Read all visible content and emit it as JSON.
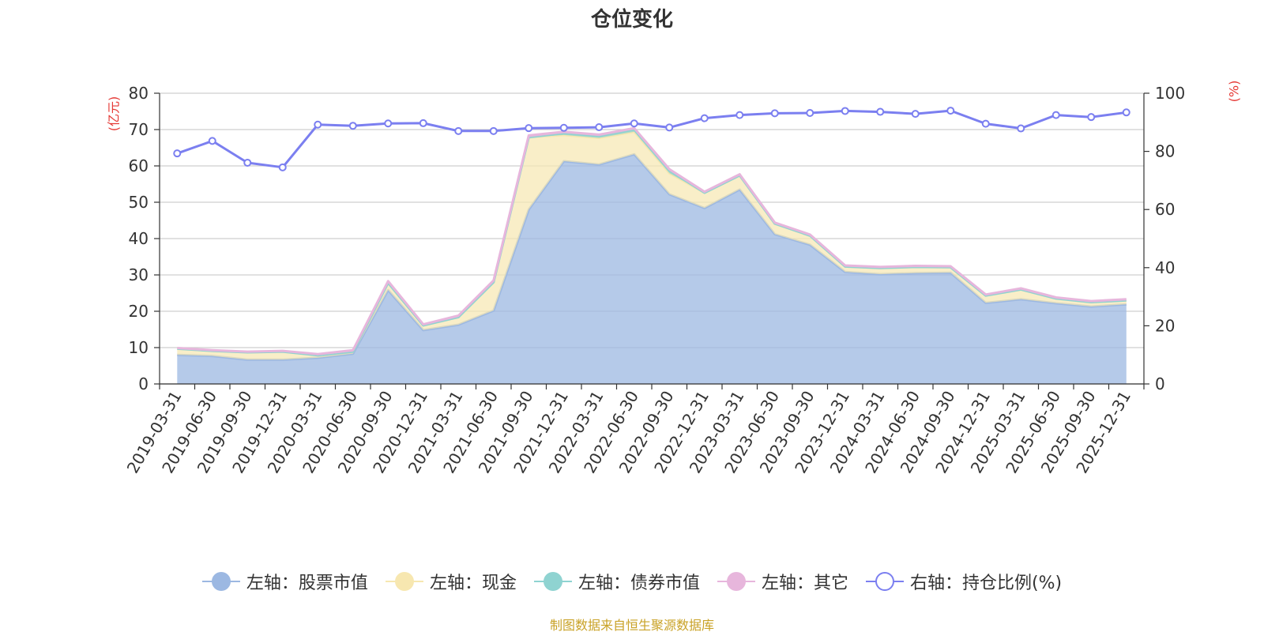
{
  "colors": {
    "stock": "#9cb8e2",
    "cash": "#f7e7b0",
    "bond": "#8fd3d1",
    "other": "#e7b6dc",
    "ratio": "#7b7ff0",
    "unit": "#e53935",
    "source": "#c9a227"
  },
  "chart_data": {
    "type": "area",
    "title": "仓位变化",
    "left_axis_unit": "(亿元)",
    "right_axis_unit": "(%)",
    "left_ylim": [
      0,
      80
    ],
    "right_ylim": [
      0,
      100
    ],
    "left_ticks": [
      "0",
      "10",
      "20",
      "30",
      "40",
      "50",
      "60",
      "70",
      "80"
    ],
    "right_ticks": [
      "0",
      "20",
      "40",
      "60",
      "80",
      "100"
    ],
    "grid": true,
    "legend_position": "bottom",
    "categories": [
      "2019-03-31",
      "2019-06-30",
      "2019-09-30",
      "2019-12-31",
      "2020-03-31",
      "2020-06-30",
      "2020-09-30",
      "2020-12-31",
      "2021-03-31",
      "2021-06-30",
      "2021-09-30",
      "2021-12-31",
      "2022-03-31",
      "2022-06-30",
      "2022-09-30",
      "2022-12-31",
      "2023-03-31",
      "2023-06-30",
      "2023-09-30",
      "2023-12-31",
      "2024-03-31",
      "2024-06-30",
      "2024-09-30",
      "2024-12-31",
      "2025-03-31",
      "2025-06-30",
      "2025-09-30",
      "2025-12-31"
    ],
    "series": [
      {
        "name": "左轴：股票市值",
        "axis": "left",
        "values": [
          8.0,
          7.7,
          6.7,
          6.7,
          7.2,
          8.3,
          25.8,
          14.8,
          16.3,
          20.2,
          48.0,
          61.3,
          60.4,
          63.2,
          52.2,
          48.4,
          53.5,
          41.2,
          38.3,
          30.8,
          30.2,
          30.5,
          30.6,
          22.3,
          23.3,
          22.2,
          21.3,
          21.9
        ]
      },
      {
        "name": "左轴：现金",
        "axis": "left",
        "values": [
          1.7,
          1.4,
          2.0,
          2.2,
          0.7,
          0.6,
          2.0,
          1.3,
          2.1,
          7.8,
          19.9,
          7.2,
          7.3,
          6.2,
          5.8,
          4.2,
          3.9,
          2.9,
          2.5,
          1.5,
          1.7,
          1.7,
          1.5,
          2.0,
          2.7,
          1.3,
          1.2,
          1.1
        ]
      },
      {
        "name": "左轴：债券市值",
        "axis": "left",
        "values": [
          0,
          0,
          0,
          0,
          0,
          0,
          0,
          0,
          0,
          0,
          0,
          0.5,
          0.5,
          0.6,
          0.7,
          0,
          0,
          0,
          0,
          0,
          0,
          0,
          0,
          0,
          0,
          0,
          0,
          0
        ]
      },
      {
        "name": "左轴：其它",
        "axis": "left",
        "values": [
          0.2,
          0.2,
          0.2,
          0.2,
          0.3,
          0.4,
          0.5,
          0.3,
          0.4,
          0.5,
          0.5,
          0.4,
          0.4,
          0.4,
          0.4,
          0.3,
          0.3,
          0.3,
          0.3,
          0.3,
          0.3,
          0.3,
          0.3,
          0.3,
          0.3,
          0.3,
          0.3,
          0.3
        ]
      },
      {
        "name": "右轴：持仓比例(%)",
        "axis": "right",
        "values": [
          79.3,
          83.6,
          76.1,
          74.5,
          89.2,
          88.8,
          89.6,
          89.7,
          87.0,
          87.0,
          88.0,
          88.1,
          88.3,
          89.6,
          88.2,
          91.4,
          92.5,
          93.1,
          93.2,
          93.9,
          93.6,
          92.9,
          94.0,
          89.5,
          87.9,
          92.5,
          91.8,
          93.4
        ]
      }
    ]
  },
  "source_text": "制图数据来自恒生聚源数据库"
}
